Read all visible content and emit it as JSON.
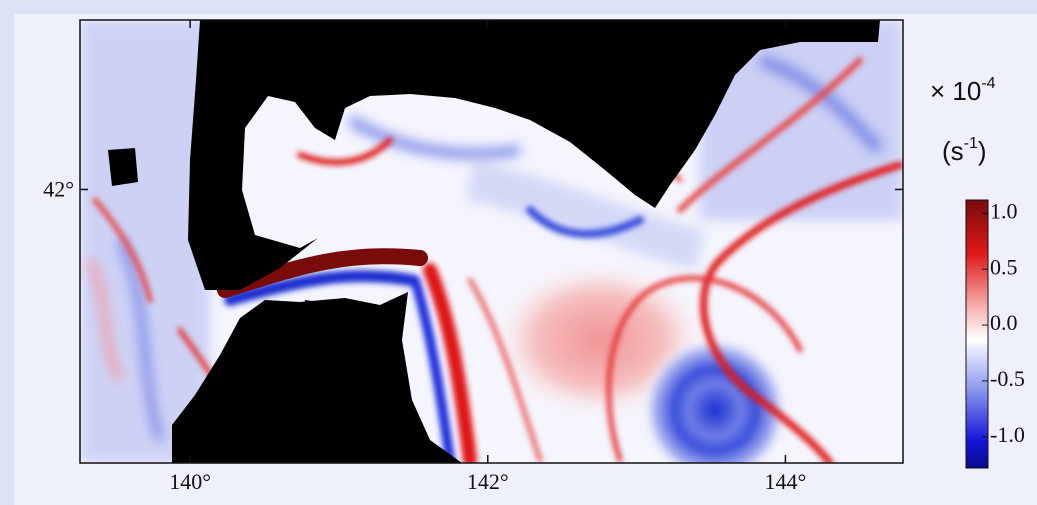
{
  "chart_data": {
    "type": "map",
    "xlim": [
      139.26,
      144.79
    ],
    "ylim": [
      40.16,
      43.14
    ],
    "xticks": [
      {
        "value": 140,
        "label": "140°"
      },
      {
        "value": 142,
        "label": "142°"
      },
      {
        "value": 144,
        "label": "144°"
      }
    ],
    "yticks": [
      {
        "value": 42,
        "label": "42°"
      }
    ],
    "colorbar": {
      "clim": [
        -1.28,
        1.12
      ],
      "ticks": [
        {
          "value": 1,
          "label": "1.0"
        },
        {
          "value": 0.5,
          "label": "0.5"
        },
        {
          "value": 0,
          "label": "0.0"
        },
        {
          "value": -0.5,
          "label": "-0.5"
        },
        {
          "value": -1,
          "label": "-1.0"
        }
      ],
      "unit_prefix": "× 10",
      "unit_prefix_exponent": "-4",
      "unit": "(s",
      "unit_exponent": "-1",
      "unit_suffix": ")"
    }
  }
}
